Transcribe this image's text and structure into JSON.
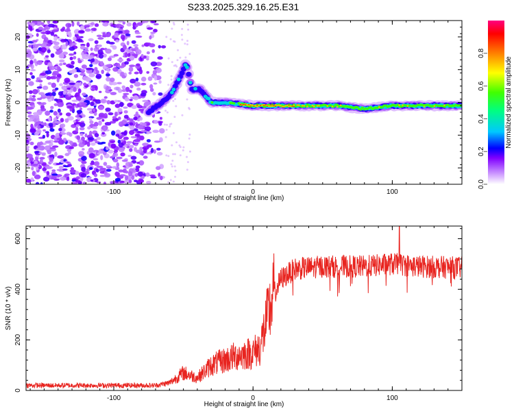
{
  "title": "S233.2025.329.16.25.E31",
  "chart_data": [
    {
      "type": "heatmap",
      "title": "S233.2025.329.16.25.E31",
      "xlabel": "Height of straight line (km)",
      "ylabel": "Frequency (Hz)",
      "xlim": [
        -163,
        150
      ],
      "ylim": [
        -25,
        25
      ],
      "x_ticks": [
        -100,
        0,
        100
      ],
      "y_ticks": [
        20,
        10,
        0,
        -10,
        -20
      ],
      "colorbar": {
        "label": "Normalized spectral amplitude",
        "range": [
          0,
          1
        ],
        "ticks": [
          0.0,
          0.2,
          0.4,
          0.6,
          0.8
        ],
        "colormap": [
          "#ffffff",
          "#a000ff",
          "#0000ff",
          "#00c0ff",
          "#00ff80",
          "#40ff00",
          "#ffff00",
          "#ff8000",
          "#ff0000",
          "#ff0080"
        ]
      },
      "features": {
        "noise_region_x": [
          -163,
          -65
        ],
        "noise_freq_range": [
          -25,
          25
        ],
        "signal_ridge": [
          {
            "x": -72,
            "y": -2
          },
          {
            "x": -65,
            "y": 0
          },
          {
            "x": -58,
            "y": 3
          },
          {
            "x": -52,
            "y": 8
          },
          {
            "x": -48,
            "y": 12
          },
          {
            "x": -44,
            "y": 4
          },
          {
            "x": -38,
            "y": 4
          },
          {
            "x": -30,
            "y": 0
          },
          {
            "x": -20,
            "y": 0
          },
          {
            "x": 0,
            "y": -1
          },
          {
            "x": 40,
            "y": -1
          },
          {
            "x": 60,
            "y": -1
          },
          {
            "x": 80,
            "y": -2
          },
          {
            "x": 100,
            "y": -1
          },
          {
            "x": 120,
            "y": -1
          },
          {
            "x": 150,
            "y": -1
          }
        ]
      }
    },
    {
      "type": "line",
      "xlabel": "Height of straight line (km)",
      "ylabel": "SNR (10 * v/v)",
      "xlim": [
        -163,
        150
      ],
      "ylim": [
        0,
        650
      ],
      "x_ticks": [
        -100,
        0,
        100
      ],
      "y_ticks": [
        0,
        200,
        400,
        600
      ],
      "line_color": "#e8241f",
      "envelope": [
        {
          "x": -163,
          "y": 20
        },
        {
          "x": -70,
          "y": 20
        },
        {
          "x": -60,
          "y": 30
        },
        {
          "x": -50,
          "y": 70
        },
        {
          "x": -40,
          "y": 50
        },
        {
          "x": -30,
          "y": 100
        },
        {
          "x": -20,
          "y": 120
        },
        {
          "x": -10,
          "y": 140
        },
        {
          "x": 0,
          "y": 150
        },
        {
          "x": 5,
          "y": 170
        },
        {
          "x": 10,
          "y": 280
        },
        {
          "x": 15,
          "y": 380
        },
        {
          "x": 20,
          "y": 440
        },
        {
          "x": 30,
          "y": 480
        },
        {
          "x": 50,
          "y": 490
        },
        {
          "x": 80,
          "y": 490
        },
        {
          "x": 100,
          "y": 500
        },
        {
          "x": 120,
          "y": 490
        },
        {
          "x": 150,
          "y": 485
        }
      ],
      "peak": {
        "x": 105,
        "y": 650
      }
    }
  ]
}
